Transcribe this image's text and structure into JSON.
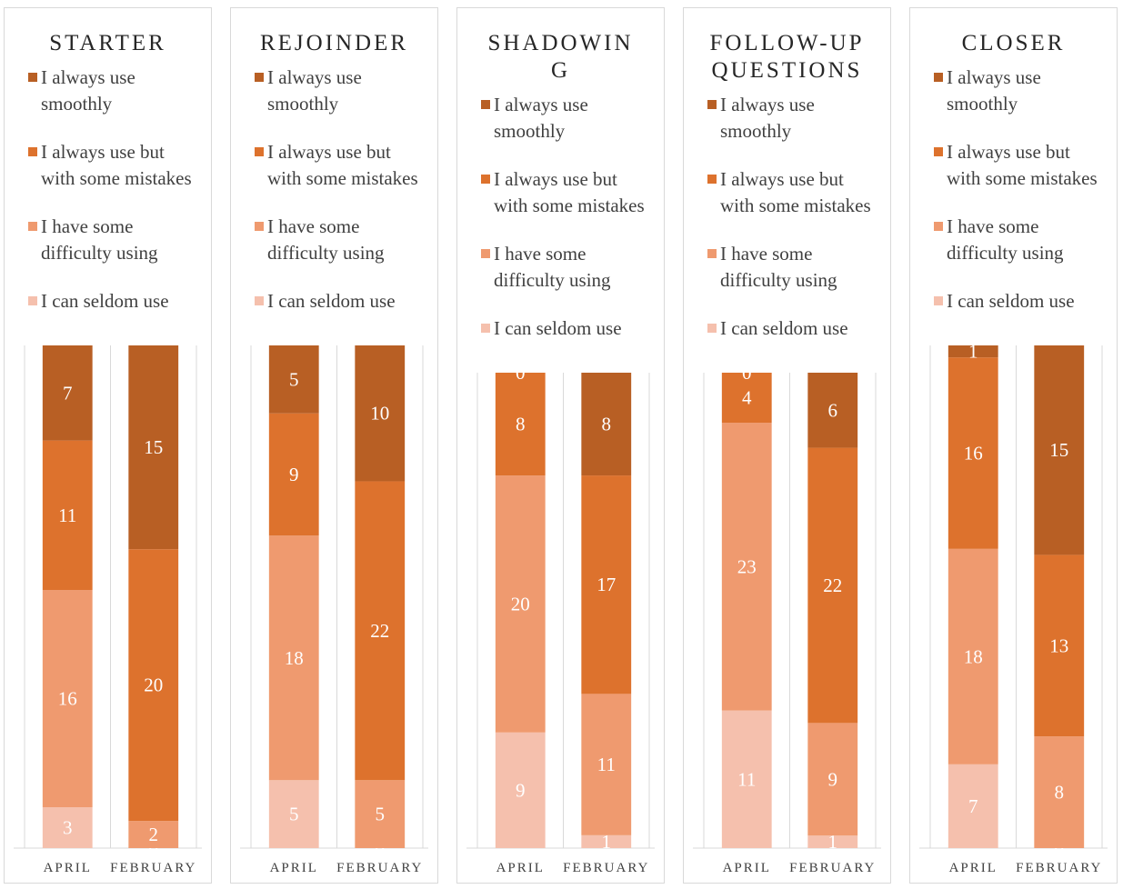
{
  "chart_data": [
    {
      "type": "bar",
      "stacked": "percent",
      "title": "STARTER",
      "categories": [
        "APRIL",
        "FEBRUARY"
      ],
      "series": [
        {
          "name": "I can seldom use",
          "color": "#f5c0ad",
          "values": [
            3,
            0
          ]
        },
        {
          "name": "I have some difficulty using",
          "color": "#ef9a6f",
          "values": [
            16,
            2
          ]
        },
        {
          "name": "I always use but with some mistakes",
          "color": "#dd722d",
          "values": [
            11,
            20
          ]
        },
        {
          "name": "I always use smoothly",
          "color": "#b85f24",
          "values": [
            7,
            15
          ]
        }
      ]
    },
    {
      "type": "bar",
      "stacked": "percent",
      "title": "REJOINDER",
      "categories": [
        "APRIL",
        "FEBRUARY"
      ],
      "series": [
        {
          "name": "I can seldom use",
          "color": "#f5c0ad",
          "values": [
            5,
            0
          ]
        },
        {
          "name": "I have some difficulty using",
          "color": "#ef9a6f",
          "values": [
            18,
            5
          ]
        },
        {
          "name": "I always use but with some mistakes",
          "color": "#dd722d",
          "values": [
            9,
            22
          ]
        },
        {
          "name": "I always use smoothly",
          "color": "#b85f24",
          "values": [
            5,
            10
          ]
        }
      ]
    },
    {
      "type": "bar",
      "stacked": "percent",
      "title": "SHADOWING",
      "categories": [
        "APRIL",
        "FEBRUARY"
      ],
      "series": [
        {
          "name": "I can seldom use",
          "color": "#f5c0ad",
          "values": [
            9,
            1
          ]
        },
        {
          "name": "I have some difficulty using",
          "color": "#ef9a6f",
          "values": [
            20,
            11
          ]
        },
        {
          "name": "I always use but with some mistakes",
          "color": "#dd722d",
          "values": [
            8,
            17
          ]
        },
        {
          "name": "I always use smoothly",
          "color": "#b85f24",
          "values": [
            0,
            8
          ]
        }
      ]
    },
    {
      "type": "bar",
      "stacked": "percent",
      "title": "FOLLOW-UP QUESTIONS",
      "categories": [
        "APRIL",
        "FEBRUARY"
      ],
      "series": [
        {
          "name": "I can seldom use",
          "color": "#f5c0ad",
          "values": [
            11,
            1
          ]
        },
        {
          "name": "I have some difficulty using",
          "color": "#ef9a6f",
          "values": [
            23,
            9
          ]
        },
        {
          "name": "I always use but with some mistakes",
          "color": "#dd722d",
          "values": [
            4,
            22
          ]
        },
        {
          "name": "I always use smoothly",
          "color": "#b85f24",
          "values": [
            0,
            6
          ]
        }
      ]
    },
    {
      "type": "bar",
      "stacked": "percent",
      "title": "CLOSER",
      "categories": [
        "APRIL",
        "FEBRUARY"
      ],
      "series": [
        {
          "name": "I can seldom use",
          "color": "#f5c0ad",
          "values": [
            7,
            0
          ]
        },
        {
          "name": "I have some difficulty using",
          "color": "#ef9a6f",
          "values": [
            18,
            8
          ]
        },
        {
          "name": "I always use but with some mistakes",
          "color": "#dd722d",
          "values": [
            16,
            13
          ]
        },
        {
          "name": "I always use smoothly",
          "color": "#b85f24",
          "values": [
            1,
            15
          ]
        }
      ]
    }
  ]
}
